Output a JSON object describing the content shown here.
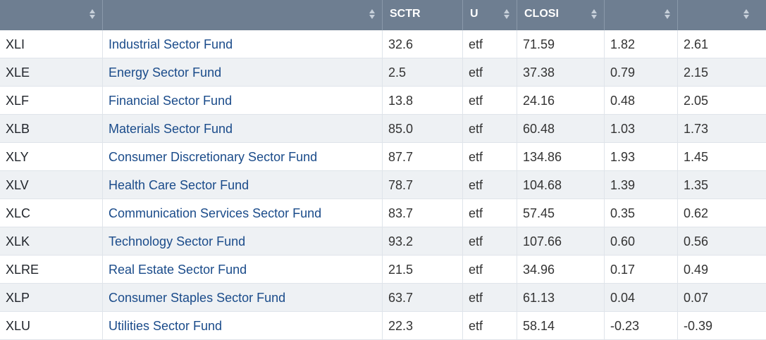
{
  "header": {
    "columns": [
      {
        "label": "",
        "sortable": true
      },
      {
        "label": "",
        "sortable": true
      },
      {
        "label": "SCTR",
        "sortable": false
      },
      {
        "label": "U",
        "sortable": true
      },
      {
        "label": "CLOSI",
        "sortable": true
      },
      {
        "label": "",
        "sortable": true
      },
      {
        "label": "",
        "sortable": true
      }
    ]
  },
  "rows": [
    {
      "symbol": "XLI",
      "name": "Industrial Sector Fund",
      "sctr": "32.6",
      "universe": "etf",
      "close": "71.59",
      "c5": "1.82",
      "c6": "2.61"
    },
    {
      "symbol": "XLE",
      "name": "Energy Sector Fund",
      "sctr": "2.5",
      "universe": "etf",
      "close": "37.38",
      "c5": "0.79",
      "c6": "2.15"
    },
    {
      "symbol": "XLF",
      "name": "Financial Sector Fund",
      "sctr": "13.8",
      "universe": "etf",
      "close": "24.16",
      "c5": "0.48",
      "c6": "2.05"
    },
    {
      "symbol": "XLB",
      "name": "Materials Sector Fund",
      "sctr": "85.0",
      "universe": "etf",
      "close": "60.48",
      "c5": "1.03",
      "c6": "1.73"
    },
    {
      "symbol": "XLY",
      "name": "Consumer Discretionary Sector Fund",
      "sctr": "87.7",
      "universe": "etf",
      "close": "134.86",
      "c5": "1.93",
      "c6": "1.45"
    },
    {
      "symbol": "XLV",
      "name": "Health Care Sector Fund",
      "sctr": "78.7",
      "universe": "etf",
      "close": "104.68",
      "c5": "1.39",
      "c6": "1.35"
    },
    {
      "symbol": "XLC",
      "name": "Communication Services Sector Fund",
      "sctr": "83.7",
      "universe": "etf",
      "close": "57.45",
      "c5": "0.35",
      "c6": "0.62"
    },
    {
      "symbol": "XLK",
      "name": "Technology Sector Fund",
      "sctr": "93.2",
      "universe": "etf",
      "close": "107.66",
      "c5": "0.60",
      "c6": "0.56"
    },
    {
      "symbol": "XLRE",
      "name": "Real Estate Sector Fund",
      "sctr": "21.5",
      "universe": "etf",
      "close": "34.96",
      "c5": "0.17",
      "c6": "0.49"
    },
    {
      "symbol": "XLP",
      "name": "Consumer Staples Sector Fund",
      "sctr": "63.7",
      "universe": "etf",
      "close": "61.13",
      "c5": "0.04",
      "c6": "0.07"
    },
    {
      "symbol": "XLU",
      "name": "Utilities Sector Fund",
      "sctr": "22.3",
      "universe": "etf",
      "close": "58.14",
      "c5": "-0.23",
      "c6": "-0.39"
    }
  ],
  "colors": {
    "header_bg": "#6e7e91",
    "header_text": "#ffffff",
    "link_text": "#1a4b8a",
    "row_alt_bg": "#eef1f4",
    "grid": "#dfe4ea"
  }
}
